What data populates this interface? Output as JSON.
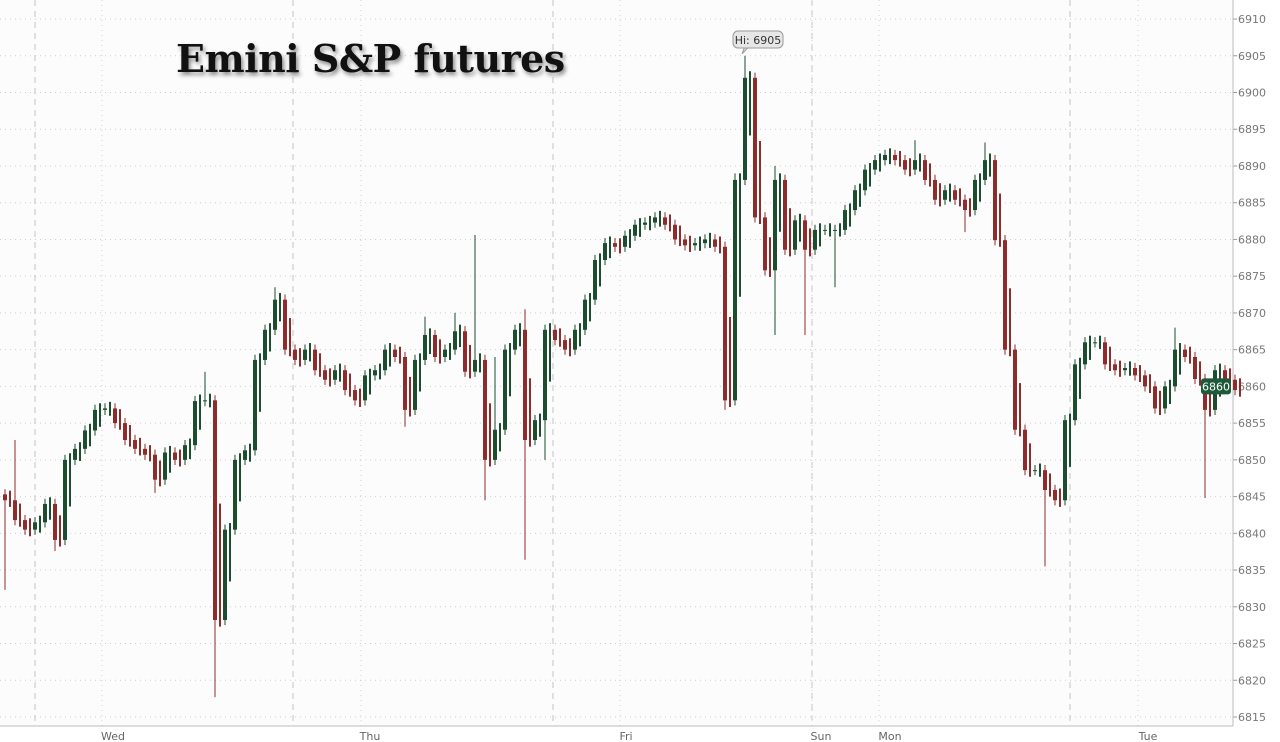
{
  "chart_data": {
    "type": "candlestick",
    "title": "Emini S&P futures",
    "ylim": [
      6813,
      6912
    ],
    "y_ticks": [
      6815,
      6820,
      6825,
      6830,
      6835,
      6840,
      6845,
      6850,
      6855,
      6860,
      6865,
      6870,
      6875,
      6880,
      6885,
      6890,
      6895,
      6900,
      6905,
      6910
    ],
    "x_tick_labels": [
      "Wed",
      "Thu",
      "Fri",
      "Sun",
      "Mon",
      "Tue"
    ],
    "grid": true,
    "colors": {
      "up": "#1d4d2f",
      "down": "#8e2b2b",
      "last_badge": "#1e5a3a"
    },
    "high_annotation": {
      "label": "Hi: 6905",
      "value": 6905
    },
    "last_price": {
      "label": "6860",
      "value": 6860
    },
    "close": [
      6844.5,
      6841.8,
      6840.5,
      6841.5,
      6844,
      6839.1,
      6850.0,
      6851.5,
      6854,
      6856.8,
      6857,
      6855,
      6852.7,
      6851.5,
      6850.7,
      6847.3,
      6851,
      6850,
      6852,
      6858,
      6858.1,
      6828.2,
      6840.5,
      6850.0,
      6851.3,
      6863.6,
      6867.7,
      6871.8,
      6865.0,
      6863.6,
      6865.0,
      6862.2,
      6860.9,
      6862.2,
      6859.5,
      6858.1,
      6861.5,
      6862.2,
      6865,
      6864,
      6856.8,
      6863.6,
      6867,
      6864,
      6865,
      6867.5,
      6862,
      6863.6,
      6850,
      6854.1,
      6865.0,
      6867.7,
      6852.7,
      6855.4,
      6867.7,
      6866.3,
      6865.0,
      6867.7,
      6871.8,
      6877.2,
      6879.5,
      6879,
      6880.5,
      6882,
      6882.3,
      6883,
      6882,
      6880,
      6879.2,
      6879.5,
      6880,
      6879,
      6858.1,
      6888.1,
      6902,
      6883,
      6875.8,
      6888.1,
      6878.6,
      6882.6,
      6878.6,
      6881.3,
      6881.3,
      6881.3,
      6884.0,
      6886.7,
      6889.5,
      6890.8,
      6891.5,
      6890.8,
      6889.5,
      6890.8,
      6888.1,
      6885.4,
      6886.7,
      6885.4,
      6884.0,
      6888.1,
      6890.8,
      6879.9,
      6865.0,
      6854.1,
      6848.6,
      6848.6,
      6845.9,
      6844.5,
      6855.4,
      6863,
      6866,
      6866,
      6863,
      6862.2,
      6862.5,
      6861.5,
      6860,
      6857,
      6860,
      6865,
      6864,
      6861,
      6856.8,
      6862.2,
      6860.9,
      6859.5
    ],
    "wick_extremes": [
      {
        "bar": 0,
        "low": 6832.3
      },
      {
        "bar": 1,
        "high": 6852.7
      },
      {
        "bar": 5,
        "low": 6837.6
      },
      {
        "bar": 15,
        "low": 6845.5
      },
      {
        "bar": 20,
        "high": 6862
      },
      {
        "bar": 21,
        "low": 6817.7
      },
      {
        "bar": 27,
        "high": 6873.5
      },
      {
        "bar": 40,
        "low": 6854.5
      },
      {
        "bar": 42,
        "high": 6869.5
      },
      {
        "bar": 45,
        "high": 6870
      },
      {
        "bar": 47,
        "high": 6880.6
      },
      {
        "bar": 48,
        "low": 6844.5
      },
      {
        "bar": 49,
        "high": 6864
      },
      {
        "bar": 52,
        "high": 6870.5,
        "low": 6836.4
      },
      {
        "bar": 54,
        "low": 6850
      },
      {
        "bar": 72,
        "low": 6856.8
      },
      {
        "bar": 73,
        "high": 6889
      },
      {
        "bar": 74,
        "high": 6905
      },
      {
        "bar": 77,
        "low": 6867,
        "high": 6890
      },
      {
        "bar": 80,
        "low": 6867
      },
      {
        "bar": 83,
        "low": 6873.5
      },
      {
        "bar": 91,
        "high": 6893.5
      },
      {
        "bar": 96,
        "low": 6881
      },
      {
        "bar": 98,
        "high": 6893.2
      },
      {
        "bar": 99,
        "high": 6891
      },
      {
        "bar": 104,
        "low": 6835.5
      },
      {
        "bar": 117,
        "high": 6868
      },
      {
        "bar": 120,
        "low": 6844.8
      }
    ]
  }
}
